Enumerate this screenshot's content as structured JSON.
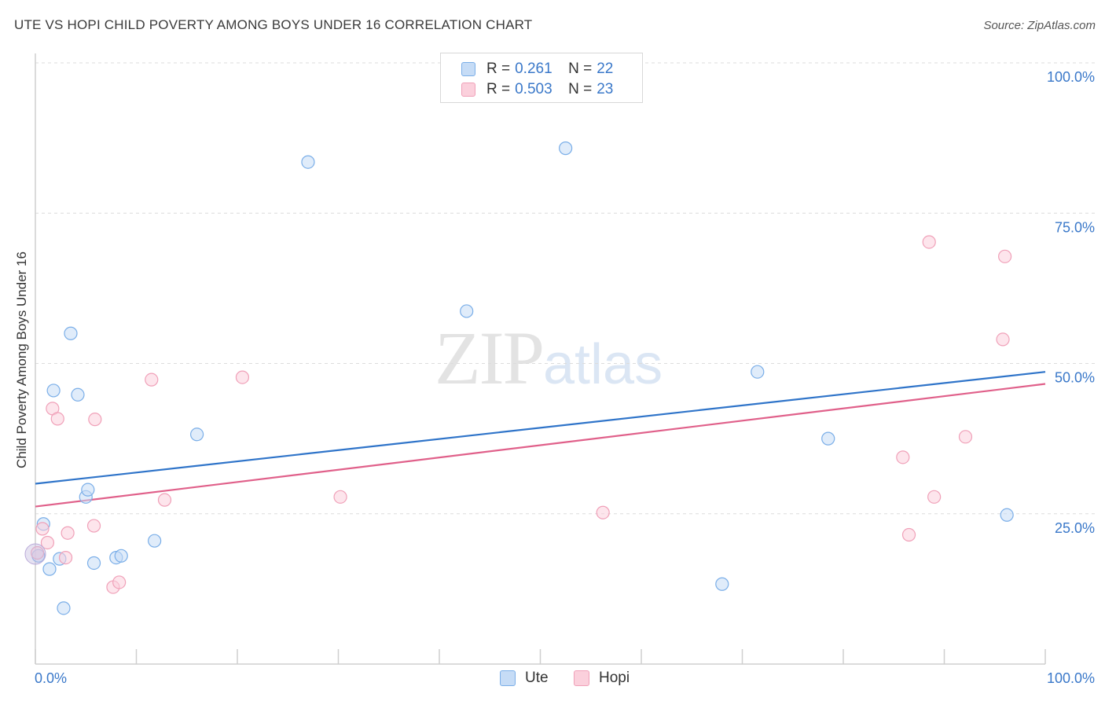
{
  "header": {
    "title": "UTE VS HOPI CHILD POVERTY AMONG BOYS UNDER 16 CORRELATION CHART",
    "source": "Source: ZipAtlas.com"
  },
  "watermark": {
    "zip": "ZIP",
    "atlas": "atlas"
  },
  "legend": {
    "r_label": "R =",
    "n_label": "N =",
    "items": [
      {
        "name": "Ute",
        "r": "0.261",
        "n": "22",
        "color": "#7aaee8",
        "fill": "#c6dcf6"
      },
      {
        "name": "Hopi",
        "r": "0.503",
        "n": "23",
        "color": "#f0a0b8",
        "fill": "#fbd0dc"
      }
    ]
  },
  "chart_data": {
    "type": "scatter",
    "title": "UTE VS HOPI CHILD POVERTY AMONG BOYS UNDER 16 CORRELATION CHART",
    "xlabel": "",
    "ylabel": "Child Poverty Among Boys Under 16",
    "xlim": [
      0,
      100
    ],
    "ylim": [
      0,
      100
    ],
    "x_tick_labels": [
      "0.0%",
      "100.0%"
    ],
    "y_ticks": [
      25,
      50,
      75,
      100
    ],
    "y_tick_labels": [
      "25.0%",
      "50.0%",
      "75.0%",
      "100.0%"
    ],
    "grid": "horizontal dashed",
    "legend_position": "top-center",
    "series": [
      {
        "name": "Ute",
        "color": "#3a78c9",
        "points": [
          [
            0.3,
            18.0
          ],
          [
            0.8,
            23.3
          ],
          [
            1.4,
            15.8
          ],
          [
            1.8,
            45.5
          ],
          [
            2.4,
            17.5
          ],
          [
            2.8,
            9.3
          ],
          [
            3.5,
            55.0
          ],
          [
            4.2,
            44.8
          ],
          [
            5.0,
            27.8
          ],
          [
            5.2,
            29.0
          ],
          [
            5.8,
            16.8
          ],
          [
            8.0,
            17.7
          ],
          [
            8.5,
            18.0
          ],
          [
            11.8,
            20.5
          ],
          [
            16.0,
            38.2
          ],
          [
            27.0,
            83.5
          ],
          [
            42.7,
            58.7
          ],
          [
            52.5,
            85.8
          ],
          [
            68.0,
            13.3
          ],
          [
            71.5,
            48.6
          ],
          [
            78.5,
            37.5
          ],
          [
            96.2,
            24.8
          ]
        ],
        "trend": {
          "x": [
            0,
            100
          ],
          "y": [
            30.0,
            48.6
          ]
        }
      },
      {
        "name": "Hopi",
        "color": "#e0608a",
        "points": [
          [
            0.2,
            18.5
          ],
          [
            0.7,
            22.5
          ],
          [
            1.2,
            20.2
          ],
          [
            1.7,
            42.5
          ],
          [
            2.2,
            40.8
          ],
          [
            3.0,
            17.7
          ],
          [
            3.2,
            21.8
          ],
          [
            5.8,
            23.0
          ],
          [
            5.9,
            40.7
          ],
          [
            7.7,
            12.8
          ],
          [
            8.3,
            13.6
          ],
          [
            11.5,
            47.3
          ],
          [
            12.8,
            27.3
          ],
          [
            20.5,
            47.7
          ],
          [
            30.2,
            27.8
          ],
          [
            56.2,
            25.2
          ],
          [
            85.9,
            34.4
          ],
          [
            88.5,
            70.2
          ],
          [
            86.5,
            21.5
          ],
          [
            89.0,
            27.8
          ],
          [
            92.1,
            37.8
          ],
          [
            96.0,
            67.8
          ],
          [
            95.8,
            54.0
          ]
        ],
        "trend": {
          "x": [
            0,
            100
          ],
          "y": [
            26.2,
            46.6
          ]
        }
      }
    ]
  }
}
